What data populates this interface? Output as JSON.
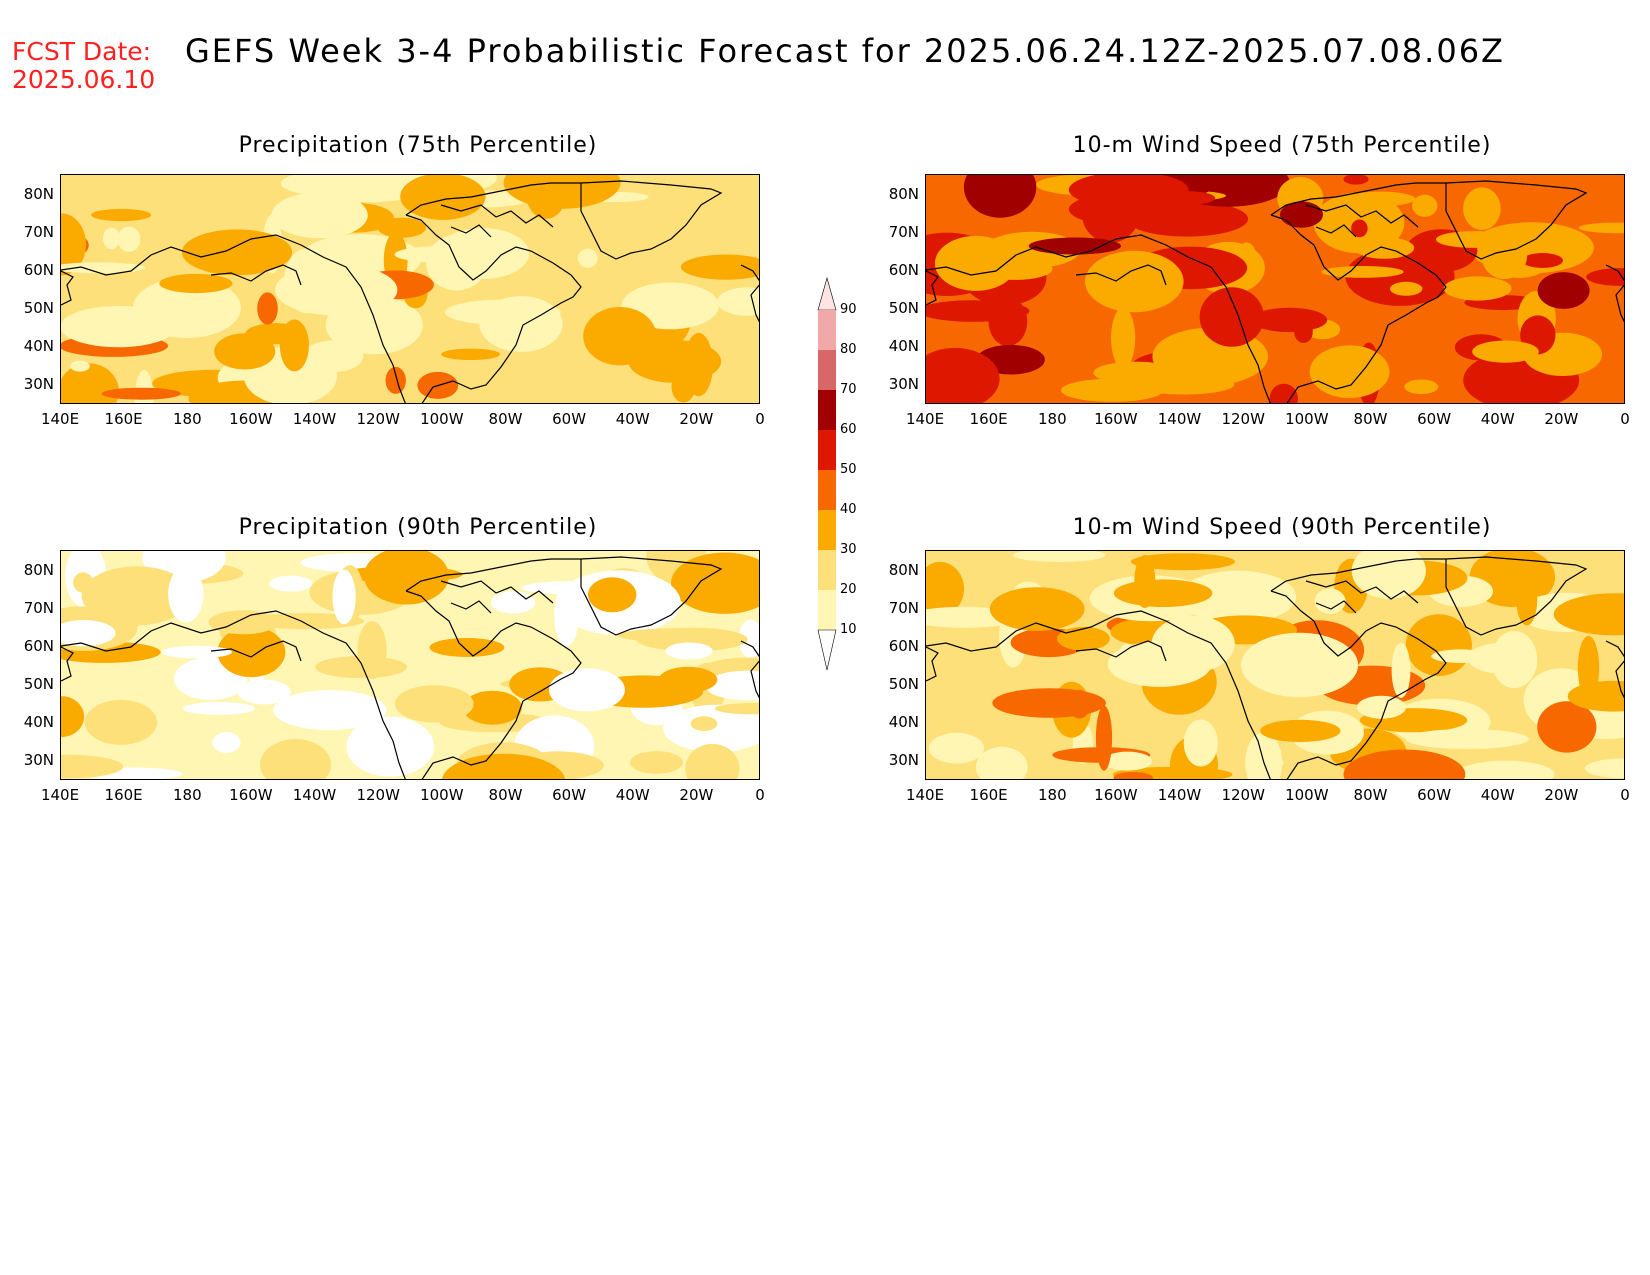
{
  "header": {
    "fcst_label": "FCST Date:",
    "fcst_date": "2025.06.10",
    "title": "GEFS Week 3-4 Probabilistic Forecast for 2025.06.24.12Z-2025.07.08.06Z"
  },
  "axes": {
    "lat_labels": [
      "80N",
      "70N",
      "60N",
      "50N",
      "40N",
      "30N"
    ],
    "lon_labels": [
      "140E",
      "160E",
      "180",
      "160W",
      "140W",
      "120W",
      "100W",
      "80W",
      "60W",
      "40W",
      "20W",
      "0"
    ]
  },
  "colorbar": {
    "levels": [
      "10",
      "20",
      "30",
      "40",
      "50",
      "60",
      "70",
      "80",
      "90"
    ],
    "colors": [
      "#ffffff",
      "#fff6b4",
      "#fde07a",
      "#fbaa00",
      "#f76800",
      "#de1800",
      "#a00000",
      "#d86868",
      "#f0a8a8",
      "#ffe4e4"
    ]
  },
  "panels": [
    {
      "id": "precip75",
      "title": "Precipitation (75th Percentile)",
      "base_level": 2
    },
    {
      "id": "wind75",
      "title": "10-m Wind Speed (75th Percentile)",
      "base_level": 4
    },
    {
      "id": "precip90",
      "title": "Precipitation (90th Percentile)",
      "base_level": 1
    },
    {
      "id": "wind90",
      "title": "10-m Wind Speed (90th Percentile)",
      "base_level": 2
    }
  ]
}
